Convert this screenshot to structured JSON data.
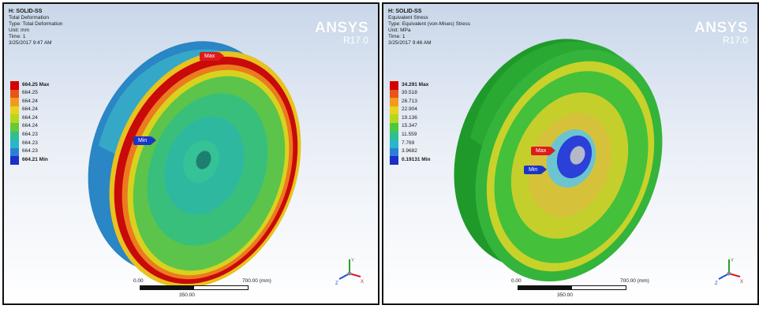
{
  "brand": {
    "name": "ANSYS",
    "version": "R17.0"
  },
  "panels": [
    {
      "info": {
        "title": "H: SOLID-SS",
        "type_name": "Total Deformation",
        "type": "Type: Total Deformation",
        "unit": "Unit: mm",
        "time": "Time: 1",
        "date": "3/25/2017 9:47 AM"
      },
      "legend": [
        "664.25 Max",
        "664.25",
        "664.24",
        "664.24",
        "664.24",
        "664.24",
        "664.23",
        "664.23",
        "664.23",
        "664.21 Min"
      ],
      "legend_colors": [
        "#d40000",
        "#e8541a",
        "#f29a1e",
        "#e8d21e",
        "#b5d81e",
        "#66c83a",
        "#2fc08e",
        "#28b6c8",
        "#2c7fd6",
        "#1a2fc8"
      ],
      "tags": {
        "max": "Max",
        "min": "Min"
      },
      "scale": {
        "start": "0.00",
        "end": "700.00 (mm)",
        "mid": "350.00"
      }
    },
    {
      "info": {
        "title": "H: SOLID-SS",
        "type_name": "Equivalent Stress",
        "type": "Type: Equivalent (von-Mises) Stress",
        "unit": "Unit: MPa",
        "time": "Time: 1",
        "date": "3/25/2017 9:46 AM"
      },
      "legend": [
        "34.291 Max",
        "30.518",
        "26.713",
        "22.904",
        "19.136",
        "15.347",
        "11.559",
        "7.769",
        "3.9682",
        "0.19131 Min"
      ],
      "legend_colors": [
        "#d40000",
        "#e8541a",
        "#f29a1e",
        "#e8d21e",
        "#b5d81e",
        "#4cc83c",
        "#2fc08e",
        "#28b6c8",
        "#2c7fd6",
        "#1a2fc8"
      ],
      "tags": {
        "max": "Max",
        "min": "Min"
      },
      "scale": {
        "start": "0.00",
        "end": "700.00 (mm)",
        "mid": "350.00"
      }
    }
  ]
}
